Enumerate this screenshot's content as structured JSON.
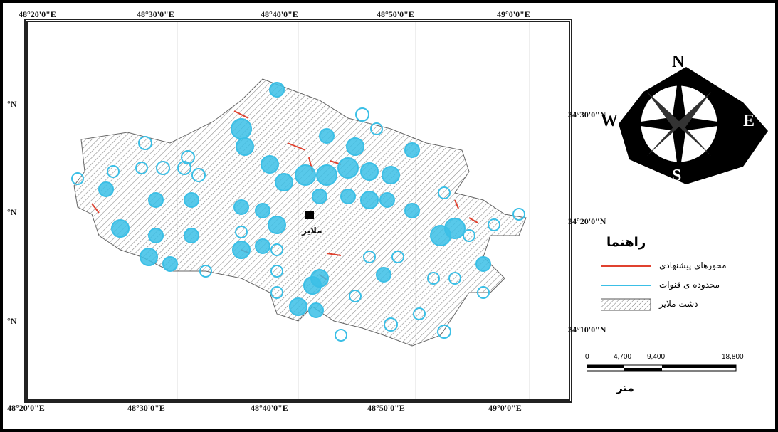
{
  "map": {
    "top_longitudes": [
      "48°20'0\"E",
      "48°30'0\"E",
      "48°40'0\"E",
      "48°50'0\"E",
      "49°0'0\"E"
    ],
    "bottom_longitudes": [
      "48°20'0\"E",
      "48°30'0\"E",
      "48°40'0\"E",
      "48°50'0\"E",
      "49°0'0\"E"
    ],
    "right_latitudes": [
      "34°30'0\"N",
      "34°20'0\"N",
      "34°10'0\"N"
    ],
    "left_latitudes": [
      "°N",
      "°N",
      "°N"
    ],
    "city_label": "ملایر",
    "colors": {
      "qanat": "#3bbfe6",
      "axis": "#e0412f",
      "plain_hatch": "#888888"
    }
  },
  "compass": {
    "n": "N",
    "e": "E",
    "s": "S",
    "w": "W"
  },
  "legend": {
    "title": "راهنما",
    "items": [
      {
        "label": "محورهای پیشنهادی",
        "symbol": "red-line"
      },
      {
        "label": "محدوده ی قنوات",
        "symbol": "cyan-line"
      },
      {
        "label": "دشت ملایر",
        "symbol": "hatched-box"
      }
    ]
  },
  "scale": {
    "ticks": [
      "0",
      "4,700",
      "9,400",
      "18,800"
    ],
    "unit": "متر"
  }
}
